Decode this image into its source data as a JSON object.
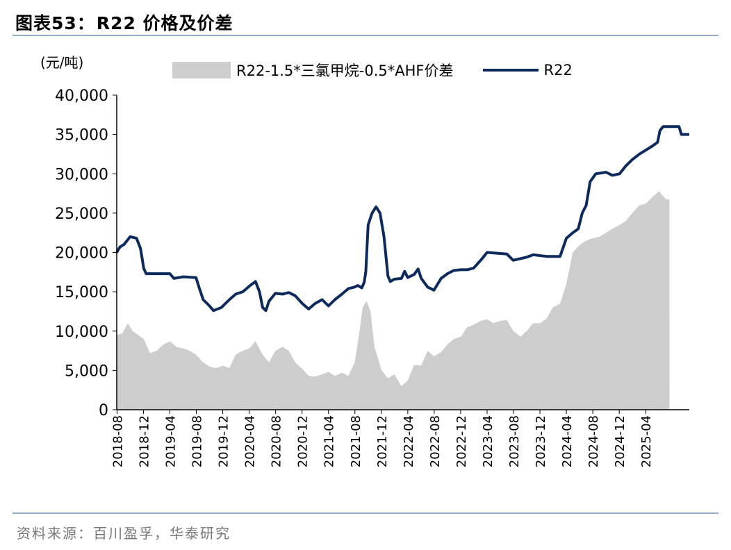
{
  "header": {
    "label": "图表53：",
    "title": "R22 价格及价差"
  },
  "unit": "(元/吨)",
  "source": "资料来源：百川盈孚，华泰研究",
  "chart_data": {
    "type": "area+line",
    "title": "R22 价格及价差",
    "ylabel": "(元/吨)",
    "ylim": [
      0,
      40000
    ],
    "yticks": [
      "0",
      "5,000",
      "10,000",
      "15,000",
      "20,000",
      "25,000",
      "30,000",
      "35,000",
      "40,000"
    ],
    "xticks": [
      "2018-08",
      "2018-12",
      "2019-04",
      "2019-08",
      "2019-12",
      "2020-04",
      "2020-08",
      "2020-12",
      "2021-04",
      "2021-08",
      "2021-12",
      "2022-04",
      "2022-08",
      "2022-12",
      "2023-04",
      "2023-08",
      "2023-12",
      "2024-04",
      "2024-08",
      "2024-12",
      "2025-04"
    ],
    "legend_position": "top",
    "series": [
      {
        "name": "R22-1.5*三氯甲烷-0.5*AHF价差",
        "kind": "area",
        "color": "#cdcdcd",
        "points": [
          [
            2018.58,
            9500
          ],
          [
            2018.65,
            9700
          ],
          [
            2018.72,
            11000
          ],
          [
            2018.78,
            10000
          ],
          [
            2018.85,
            9500
          ],
          [
            2018.92,
            9000
          ],
          [
            2019.0,
            7200
          ],
          [
            2019.08,
            7500
          ],
          [
            2019.17,
            8300
          ],
          [
            2019.25,
            8700
          ],
          [
            2019.33,
            8000
          ],
          [
            2019.42,
            7800
          ],
          [
            2019.5,
            7500
          ],
          [
            2019.58,
            7000
          ],
          [
            2019.67,
            6000
          ],
          [
            2019.75,
            5500
          ],
          [
            2019.83,
            5300
          ],
          [
            2019.92,
            5600
          ],
          [
            2020.0,
            5300
          ],
          [
            2020.08,
            7000
          ],
          [
            2020.17,
            7500
          ],
          [
            2020.25,
            7800
          ],
          [
            2020.33,
            8700
          ],
          [
            2020.42,
            7000
          ],
          [
            2020.5,
            6000
          ],
          [
            2020.58,
            7500
          ],
          [
            2020.67,
            8000
          ],
          [
            2020.75,
            7500
          ],
          [
            2020.83,
            6000
          ],
          [
            2020.92,
            5200
          ],
          [
            2021.0,
            4300
          ],
          [
            2021.08,
            4200
          ],
          [
            2021.17,
            4500
          ],
          [
            2021.25,
            4800
          ],
          [
            2021.33,
            4300
          ],
          [
            2021.42,
            4700
          ],
          [
            2021.5,
            4300
          ],
          [
            2021.58,
            6000
          ],
          [
            2021.64,
            9800
          ],
          [
            2021.68,
            13000
          ],
          [
            2021.73,
            13800
          ],
          [
            2021.78,
            12500
          ],
          [
            2021.83,
            8000
          ],
          [
            2021.92,
            5000
          ],
          [
            2022.0,
            4000
          ],
          [
            2022.08,
            4500
          ],
          [
            2022.17,
            3000
          ],
          [
            2022.25,
            3700
          ],
          [
            2022.33,
            5700
          ],
          [
            2022.42,
            5600
          ],
          [
            2022.5,
            7500
          ],
          [
            2022.58,
            6800
          ],
          [
            2022.67,
            7300
          ],
          [
            2022.75,
            8300
          ],
          [
            2022.83,
            9000
          ],
          [
            2022.92,
            9300
          ],
          [
            2023.0,
            10500
          ],
          [
            2023.08,
            10800
          ],
          [
            2023.17,
            11300
          ],
          [
            2023.25,
            11500
          ],
          [
            2023.33,
            11000
          ],
          [
            2023.42,
            11300
          ],
          [
            2023.5,
            11400
          ],
          [
            2023.58,
            10000
          ],
          [
            2023.67,
            9300
          ],
          [
            2023.75,
            10000
          ],
          [
            2023.83,
            11000
          ],
          [
            2023.92,
            11000
          ],
          [
            2024.0,
            11600
          ],
          [
            2024.08,
            13000
          ],
          [
            2024.17,
            13500
          ],
          [
            2024.25,
            16000
          ],
          [
            2024.33,
            20000
          ],
          [
            2024.42,
            21000
          ],
          [
            2024.5,
            21500
          ],
          [
            2024.58,
            21800
          ],
          [
            2024.67,
            22000
          ],
          [
            2024.75,
            22500
          ],
          [
            2024.83,
            23000
          ],
          [
            2024.92,
            23500
          ],
          [
            2025.0,
            24000
          ],
          [
            2025.08,
            25000
          ],
          [
            2025.17,
            26000
          ],
          [
            2025.25,
            26200
          ],
          [
            2025.33,
            27000
          ],
          [
            2025.42,
            27800
          ],
          [
            2025.5,
            26800
          ],
          [
            2025.55,
            26700
          ]
        ]
      },
      {
        "name": "R22",
        "kind": "line",
        "color": "#0d2a5c",
        "points": [
          [
            2018.58,
            20000
          ],
          [
            2018.62,
            20700
          ],
          [
            2018.67,
            21000
          ],
          [
            2018.75,
            22000
          ],
          [
            2018.83,
            21800
          ],
          [
            2018.88,
            20500
          ],
          [
            2018.92,
            18000
          ],
          [
            2018.95,
            17300
          ],
          [
            2019.25,
            17300
          ],
          [
            2019.3,
            16700
          ],
          [
            2019.42,
            16900
          ],
          [
            2019.58,
            16800
          ],
          [
            2019.62,
            15500
          ],
          [
            2019.67,
            14000
          ],
          [
            2019.75,
            13200
          ],
          [
            2019.8,
            12600
          ],
          [
            2019.9,
            13000
          ],
          [
            2020.0,
            14000
          ],
          [
            2020.08,
            14700
          ],
          [
            2020.17,
            15000
          ],
          [
            2020.25,
            15700
          ],
          [
            2020.33,
            16300
          ],
          [
            2020.38,
            15000
          ],
          [
            2020.42,
            13000
          ],
          [
            2020.46,
            12600
          ],
          [
            2020.5,
            13800
          ],
          [
            2020.58,
            14800
          ],
          [
            2020.67,
            14700
          ],
          [
            2020.75,
            14900
          ],
          [
            2020.83,
            14500
          ],
          [
            2020.92,
            13500
          ],
          [
            2021.0,
            12800
          ],
          [
            2021.08,
            13500
          ],
          [
            2021.17,
            14000
          ],
          [
            2021.25,
            13200
          ],
          [
            2021.33,
            14000
          ],
          [
            2021.42,
            14700
          ],
          [
            2021.5,
            15400
          ],
          [
            2021.58,
            15600
          ],
          [
            2021.62,
            15800
          ],
          [
            2021.67,
            15500
          ],
          [
            2021.7,
            16200
          ],
          [
            2021.72,
            17500
          ],
          [
            2021.75,
            23500
          ],
          [
            2021.8,
            25000
          ],
          [
            2021.85,
            25800
          ],
          [
            2021.9,
            25000
          ],
          [
            2021.95,
            22000
          ],
          [
            2022.0,
            17000
          ],
          [
            2022.03,
            16300
          ],
          [
            2022.08,
            16600
          ],
          [
            2022.17,
            16700
          ],
          [
            2022.21,
            17600
          ],
          [
            2022.25,
            16800
          ],
          [
            2022.33,
            17200
          ],
          [
            2022.38,
            17900
          ],
          [
            2022.42,
            16700
          ],
          [
            2022.5,
            15600
          ],
          [
            2022.58,
            15200
          ],
          [
            2022.67,
            16700
          ],
          [
            2022.75,
            17300
          ],
          [
            2022.83,
            17700
          ],
          [
            2022.92,
            17800
          ],
          [
            2023.0,
            17800
          ],
          [
            2023.08,
            18000
          ],
          [
            2023.17,
            19000
          ],
          [
            2023.25,
            20000
          ],
          [
            2023.5,
            19800
          ],
          [
            2023.58,
            19000
          ],
          [
            2023.75,
            19400
          ],
          [
            2023.83,
            19700
          ],
          [
            2024.0,
            19500
          ],
          [
            2024.17,
            19500
          ],
          [
            2024.25,
            21800
          ],
          [
            2024.33,
            22500
          ],
          [
            2024.4,
            23000
          ],
          [
            2024.45,
            25000
          ],
          [
            2024.5,
            26000
          ],
          [
            2024.55,
            29000
          ],
          [
            2024.62,
            30000
          ],
          [
            2024.75,
            30200
          ],
          [
            2024.83,
            29800
          ],
          [
            2024.92,
            30000
          ],
          [
            2025.0,
            31000
          ],
          [
            2025.08,
            31800
          ],
          [
            2025.17,
            32500
          ],
          [
            2025.25,
            33000
          ],
          [
            2025.33,
            33500
          ],
          [
            2025.4,
            34000
          ],
          [
            2025.43,
            35500
          ],
          [
            2025.47,
            36000
          ],
          [
            2025.67,
            36000
          ],
          [
            2025.7,
            35000
          ],
          [
            2025.8,
            35000
          ]
        ]
      }
    ]
  }
}
